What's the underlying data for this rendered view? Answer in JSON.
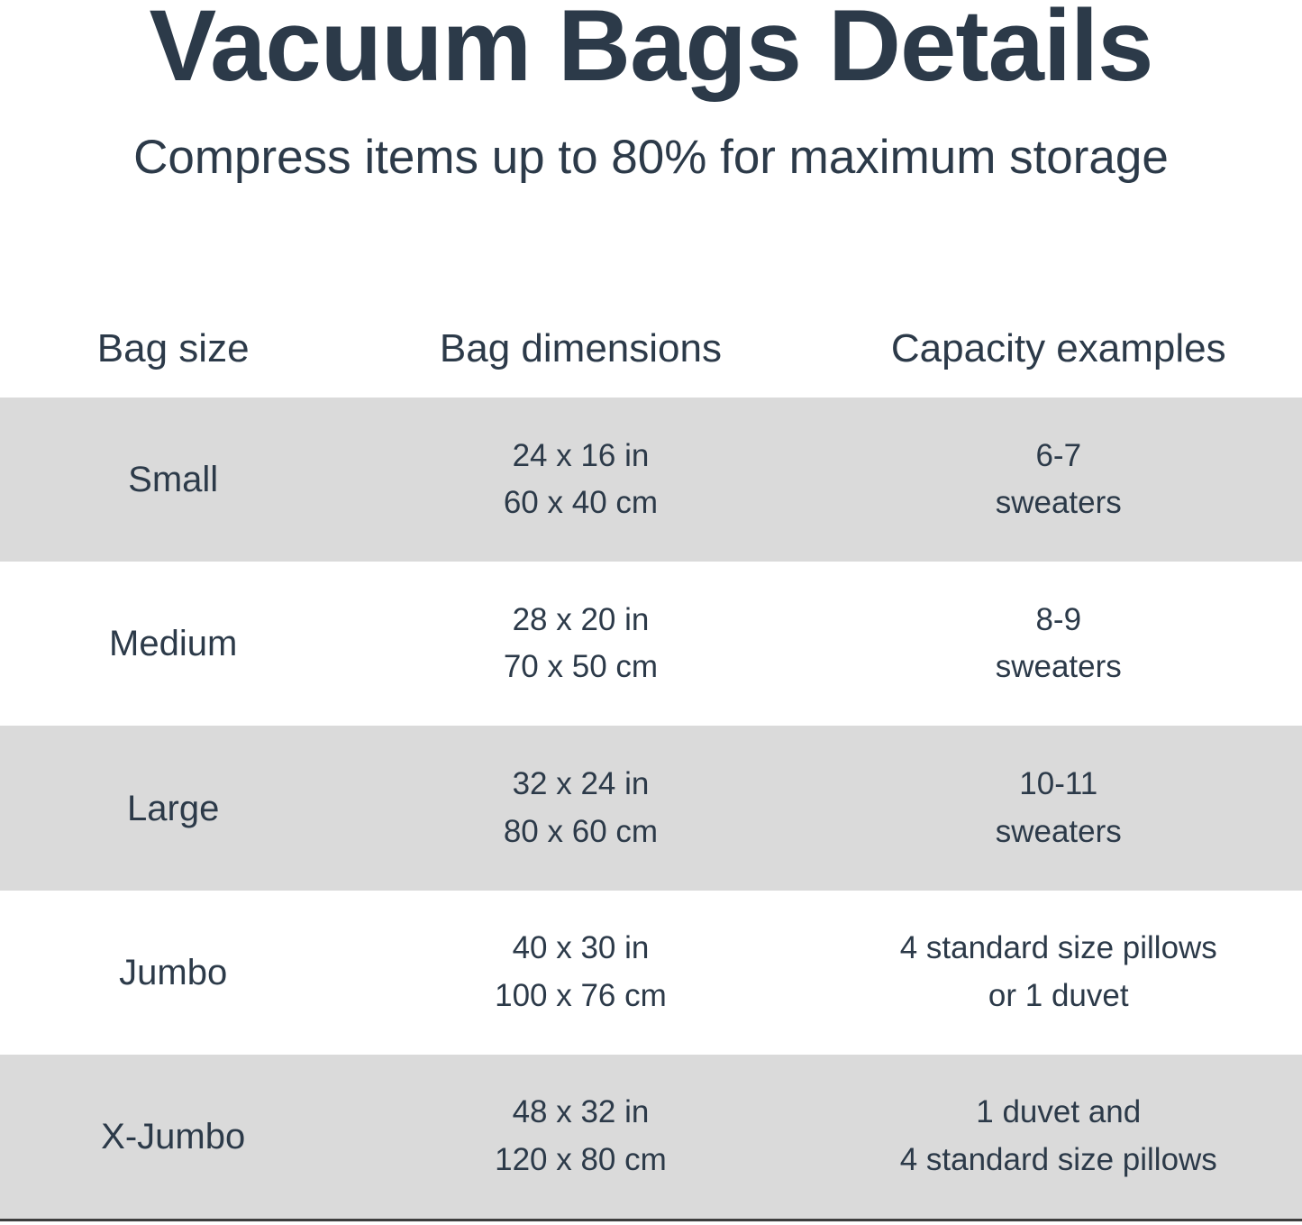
{
  "page": {
    "title": "Vacuum Bags Details",
    "subtitle": "Compress items up to 80% for maximum storage"
  },
  "table": {
    "columns": [
      {
        "label": "Bag size"
      },
      {
        "label": "Bag dimensions"
      },
      {
        "label": "Capacity examples"
      }
    ],
    "rows": [
      {
        "size": "Small",
        "dims_in": "24 x 16 in",
        "dims_cm": "60 x 40 cm",
        "cap1": "6-7",
        "cap2": "sweaters"
      },
      {
        "size": "Medium",
        "dims_in": "28 x 20 in",
        "dims_cm": "70 x 50 cm",
        "cap1": "8-9",
        "cap2": "sweaters"
      },
      {
        "size": "Large",
        "dims_in": "32 x 24 in",
        "dims_cm": "80 x 60 cm",
        "cap1": "10-11",
        "cap2": "sweaters"
      },
      {
        "size": "Jumbo",
        "dims_in": "40 x 30 in",
        "dims_cm": "100 x 76 cm",
        "cap1": "4 standard size pillows",
        "cap2": "or 1 duvet"
      },
      {
        "size": "X-Jumbo",
        "dims_in": "48 x 32 in",
        "dims_cm": "120 x 80 cm",
        "cap1": "1 duvet and",
        "cap2": "4 standard size pillows"
      }
    ]
  },
  "colors": {
    "text": "#2c3a49",
    "row_shade": "#dadada",
    "background": "#ffffff",
    "bottom_rule": "#3d3d3d"
  }
}
